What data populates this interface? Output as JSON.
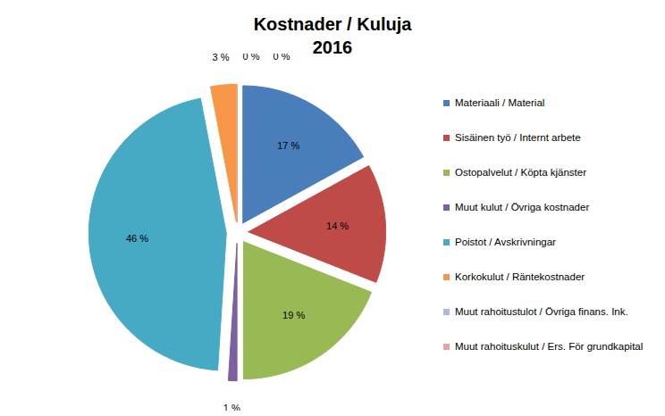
{
  "chart_data": {
    "type": "pie",
    "title": "Kostnader / Kuluja",
    "subtitle": "2016",
    "categories": [
      "Materiaali / Material",
      "Sisäinen työ / Internt arbete",
      "Ostopalvelut / Köpta kjänster",
      "Muut kulut / Övriga kostnader",
      "Poistot / Avskrivningar",
      "Korkokulut / Räntekostnader",
      "Muut rahoitustulot / Övriga finans. Ink.",
      "Muut rahoituskulut / Ers. För grundkapital"
    ],
    "values": [
      17,
      14,
      19,
      1,
      46,
      3,
      0,
      0
    ],
    "value_labels": [
      "17 %",
      "14 %",
      "19 %",
      "1 %",
      "46 %",
      "3 %",
      "0 %",
      "0 %"
    ],
    "colors": [
      "#4a7ebb",
      "#be4b48",
      "#98b954",
      "#7d60a0",
      "#46aac5",
      "#f79646",
      "#a9bcd9",
      "#e5a3a2"
    ],
    "data_labels": true,
    "legend": "right"
  }
}
